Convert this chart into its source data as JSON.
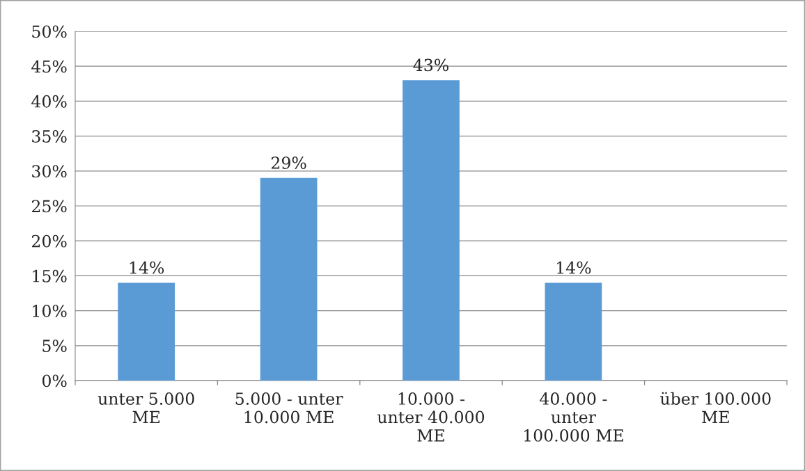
{
  "chart_data": {
    "type": "bar",
    "categories": [
      "unter 5.000\nME",
      "5.000 - unter\n10.000 ME",
      "10.000 -\nunter 40.000\nME",
      "40.000 -\nunter\n100.000 ME",
      "über 100.000\nME"
    ],
    "values": [
      14,
      29,
      43,
      14,
      0
    ],
    "value_labels": [
      "14%",
      "29%",
      "43%",
      "14%",
      null
    ],
    "color": "#5b9bd5",
    "ylim": [
      0,
      50
    ],
    "yticks": [
      {
        "value": 0,
        "label": "0%"
      },
      {
        "value": 5,
        "label": "5%"
      },
      {
        "value": 10,
        "label": "10%"
      },
      {
        "value": 15,
        "label": "15%"
      },
      {
        "value": 20,
        "label": "20%"
      },
      {
        "value": 25,
        "label": "25%"
      },
      {
        "value": 30,
        "label": "30%"
      },
      {
        "value": 35,
        "label": "35%"
      },
      {
        "value": 40,
        "label": "40%"
      },
      {
        "value": 45,
        "label": "45%"
      },
      {
        "value": 50,
        "label": "50%"
      }
    ],
    "grid": "y",
    "legend": false
  }
}
